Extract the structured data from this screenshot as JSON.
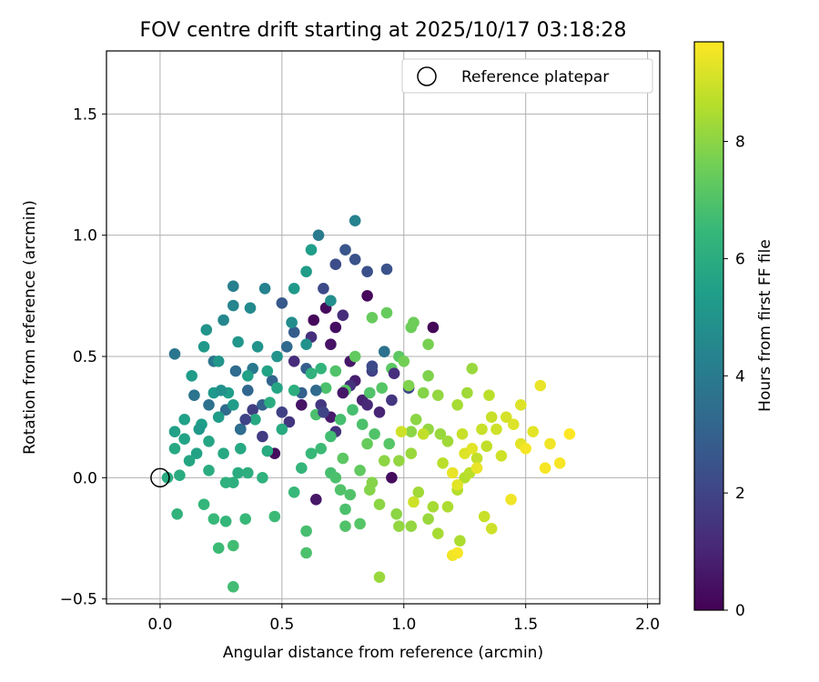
{
  "chart_data": {
    "type": "scatter",
    "title": "FOV centre drift starting at 2025/10/17 03:18:28",
    "xlabel": "Angular distance from reference (arcmin)",
    "ylabel": "Rotation from reference (arcmin)",
    "xlim": [
      -0.22,
      2.05
    ],
    "ylim": [
      -0.52,
      1.76
    ],
    "xticks": [
      0.0,
      0.5,
      1.0,
      1.5,
      2.0
    ],
    "xtick_labels": [
      "0.0",
      "0.5",
      "1.0",
      "1.5",
      "2.0"
    ],
    "yticks": [
      -0.5,
      0.0,
      0.5,
      1.0,
      1.5
    ],
    "ytick_labels": [
      "−0.5",
      "0.0",
      "0.5",
      "1.0",
      "1.5"
    ],
    "grid": true,
    "legend": {
      "position": "top-right",
      "entries": [
        "Reference platepar"
      ]
    },
    "reference_point": {
      "x": 0.0,
      "y": 0.0,
      "marker": "open-circle"
    },
    "colorbar": {
      "label": "Hours from first FF file",
      "range": [
        0,
        9.7
      ],
      "ticks": [
        0,
        2,
        4,
        6,
        8
      ],
      "tick_labels": [
        "0",
        "2",
        "4",
        "6",
        "8"
      ],
      "colormap": [
        "#440154",
        "#482878",
        "#3e4989",
        "#31688e",
        "#26828e",
        "#1f9e89",
        "#35b779",
        "#6ece58",
        "#b5de2b",
        "#fde725"
      ]
    },
    "points": [
      [
        0.63,
        0.65,
        0.2
      ],
      [
        0.68,
        0.7,
        0.3
      ],
      [
        0.72,
        0.62,
        0.4
      ],
      [
        0.85,
        0.75,
        0.2
      ],
      [
        1.12,
        0.62,
        0.1
      ],
      [
        0.7,
        0.55,
        0.5
      ],
      [
        0.78,
        0.48,
        0.6
      ],
      [
        0.8,
        0.4,
        0.8
      ],
      [
        0.58,
        0.3,
        0.5
      ],
      [
        0.47,
        0.1,
        0.3
      ],
      [
        0.95,
        0.0,
        0.3
      ],
      [
        0.64,
        -0.09,
        0.6
      ],
      [
        0.7,
        0.25,
        0.7
      ],
      [
        0.83,
        0.32,
        0.9
      ],
      [
        0.9,
        0.27,
        1.0
      ],
      [
        0.75,
        0.67,
        1.2
      ],
      [
        0.62,
        0.58,
        1.3
      ],
      [
        0.55,
        0.48,
        1.2
      ],
      [
        0.78,
        0.38,
        1.4
      ],
      [
        0.95,
        0.32,
        1.5
      ],
      [
        0.66,
        0.3,
        1.6
      ],
      [
        0.72,
        0.19,
        1.4
      ],
      [
        0.53,
        0.23,
        1.5
      ],
      [
        0.42,
        0.17,
        1.7
      ],
      [
        0.33,
        0.2,
        1.6
      ],
      [
        0.38,
        0.28,
        1.8
      ],
      [
        0.87,
        0.44,
        1.9
      ],
      [
        1.02,
        0.37,
        2.0
      ],
      [
        0.67,
        0.78,
        2.2
      ],
      [
        0.72,
        0.88,
        2.3
      ],
      [
        0.85,
        0.85,
        2.4
      ],
      [
        0.93,
        0.86,
        2.5
      ],
      [
        0.8,
        0.9,
        2.5
      ],
      [
        0.76,
        0.94,
        2.6
      ],
      [
        0.5,
        0.72,
        2.7
      ],
      [
        0.55,
        0.6,
        2.8
      ],
      [
        0.6,
        0.45,
        2.9
      ],
      [
        0.58,
        0.35,
        3.0
      ],
      [
        0.42,
        0.3,
        3.0
      ],
      [
        0.46,
        0.4,
        3.1
      ],
      [
        0.36,
        0.36,
        3.2
      ],
      [
        0.52,
        0.54,
        3.3
      ],
      [
        0.31,
        0.44,
        3.4
      ],
      [
        0.27,
        0.28,
        3.4
      ],
      [
        0.33,
        0.2,
        3.5
      ],
      [
        0.2,
        0.3,
        3.6
      ],
      [
        0.14,
        0.34,
        3.7
      ],
      [
        0.22,
        0.48,
        3.8
      ],
      [
        0.06,
        0.51,
        3.8
      ],
      [
        0.38,
        0.45,
        3.9
      ],
      [
        0.65,
        1.0,
        4.0
      ],
      [
        0.8,
        1.06,
        4.3
      ],
      [
        0.3,
        0.79,
        4.2
      ],
      [
        0.43,
        0.78,
        4.3
      ],
      [
        0.26,
        0.65,
        4.5
      ],
      [
        0.3,
        0.71,
        4.4
      ],
      [
        0.37,
        0.7,
        4.6
      ],
      [
        0.54,
        0.64,
        4.7
      ],
      [
        0.7,
        0.73,
        4.8
      ],
      [
        0.6,
        0.55,
        4.9
      ],
      [
        0.48,
        0.5,
        5.0
      ],
      [
        0.4,
        0.54,
        5.0
      ],
      [
        0.32,
        0.56,
        5.1
      ],
      [
        0.24,
        0.48,
        5.1
      ],
      [
        0.18,
        0.54,
        5.2
      ],
      [
        0.13,
        0.42,
        5.3
      ],
      [
        0.22,
        0.35,
        5.2
      ],
      [
        0.3,
        0.3,
        5.3
      ],
      [
        0.17,
        0.22,
        5.4
      ],
      [
        0.1,
        0.24,
        5.5
      ],
      [
        0.06,
        0.19,
        5.5
      ],
      [
        0.1,
        0.16,
        5.6
      ],
      [
        0.15,
        0.1,
        5.6
      ],
      [
        0.2,
        0.15,
        5.7
      ],
      [
        0.26,
        0.1,
        5.8
      ],
      [
        0.33,
        0.12,
        5.8
      ],
      [
        0.44,
        0.11,
        5.9
      ],
      [
        0.06,
        0.12,
        5.8
      ],
      [
        0.03,
        0.0,
        5.9
      ],
      [
        0.08,
        0.01,
        6.0
      ],
      [
        0.2,
        0.03,
        6.0
      ],
      [
        0.3,
        -0.02,
        6.1
      ],
      [
        0.32,
        0.02,
        6.0
      ],
      [
        0.36,
        0.02,
        6.1
      ],
      [
        0.27,
        -0.02,
        6.2
      ],
      [
        0.42,
        0.0,
        6.2
      ],
      [
        0.07,
        -0.15,
        6.3
      ],
      [
        0.18,
        -0.11,
        6.4
      ],
      [
        0.22,
        -0.17,
        6.5
      ],
      [
        0.27,
        -0.18,
        6.4
      ],
      [
        0.35,
        -0.17,
        6.5
      ],
      [
        0.47,
        -0.16,
        6.6
      ],
      [
        0.24,
        -0.29,
        6.6
      ],
      [
        0.3,
        -0.28,
        6.7
      ],
      [
        0.3,
        -0.45,
        6.7
      ],
      [
        0.55,
        -0.06,
        6.5
      ],
      [
        0.6,
        -0.22,
        6.8
      ],
      [
        0.6,
        -0.31,
        6.9
      ],
      [
        0.7,
        0.02,
        6.8
      ],
      [
        0.72,
        0.0,
        6.9
      ],
      [
        0.74,
        -0.05,
        7.0
      ],
      [
        0.76,
        -0.13,
        6.9
      ],
      [
        0.78,
        -0.07,
        7.0
      ],
      [
        0.82,
        -0.19,
        7.1
      ],
      [
        0.76,
        -0.2,
        7.0
      ],
      [
        0.58,
        0.04,
        6.4
      ],
      [
        0.62,
        0.1,
        6.5
      ],
      [
        0.66,
        0.12,
        6.6
      ],
      [
        0.7,
        0.17,
        6.7
      ],
      [
        0.74,
        0.24,
        6.8
      ],
      [
        0.79,
        0.28,
        6.8
      ],
      [
        0.83,
        0.22,
        6.9
      ],
      [
        0.88,
        0.18,
        7.0
      ],
      [
        0.94,
        0.14,
        7.1
      ],
      [
        0.86,
        0.35,
        7.0
      ],
      [
        0.91,
        0.37,
        7.1
      ],
      [
        0.95,
        0.45,
        7.2
      ],
      [
        0.98,
        0.5,
        7.2
      ],
      [
        0.92,
        0.52,
        7.3
      ],
      [
        0.87,
        0.66,
        7.4
      ],
      [
        0.93,
        0.68,
        7.4
      ],
      [
        1.03,
        0.62,
        7.5
      ],
      [
        1.04,
        0.64,
        7.5
      ],
      [
        1.0,
        0.48,
        7.6
      ],
      [
        1.1,
        0.55,
        7.7
      ],
      [
        1.02,
        0.38,
        7.8
      ],
      [
        1.1,
        0.42,
        7.8
      ],
      [
        1.08,
        0.35,
        7.9
      ],
      [
        1.05,
        0.24,
        8.0
      ],
      [
        1.03,
        0.19,
        8.0
      ],
      [
        1.1,
        0.2,
        8.1
      ],
      [
        1.15,
        0.18,
        8.2
      ],
      [
        1.18,
        0.15,
        8.3
      ],
      [
        1.03,
        0.1,
        8.2
      ],
      [
        0.98,
        0.07,
        8.1
      ],
      [
        0.92,
        0.07,
        8.0
      ],
      [
        0.87,
        -0.02,
        7.9
      ],
      [
        0.86,
        -0.05,
        7.9
      ],
      [
        0.9,
        -0.11,
        8.0
      ],
      [
        0.97,
        -0.15,
        8.0
      ],
      [
        0.98,
        -0.2,
        8.1
      ],
      [
        1.03,
        -0.2,
        8.1
      ],
      [
        1.1,
        -0.17,
        8.2
      ],
      [
        1.06,
        -0.06,
        8.3
      ],
      [
        1.12,
        -0.12,
        8.4
      ],
      [
        1.18,
        -0.12,
        8.5
      ],
      [
        1.22,
        -0.05,
        8.6
      ],
      [
        1.14,
        -0.23,
        8.4
      ],
      [
        1.23,
        -0.26,
        8.5
      ],
      [
        0.9,
        -0.41,
        8.2
      ],
      [
        1.25,
        0.0,
        8.6
      ],
      [
        1.27,
        0.02,
        8.7
      ],
      [
        1.3,
        0.08,
        8.8
      ],
      [
        1.34,
        0.13,
        8.8
      ],
      [
        1.32,
        0.2,
        8.9
      ],
      [
        1.38,
        0.2,
        9.0
      ],
      [
        1.33,
        -0.16,
        8.9
      ],
      [
        1.36,
        -0.21,
        9.0
      ],
      [
        1.4,
        0.09,
        9.0
      ],
      [
        1.36,
        0.25,
        8.9
      ],
      [
        1.42,
        0.25,
        9.1
      ],
      [
        1.45,
        0.22,
        9.2
      ],
      [
        1.48,
        0.3,
        9.2
      ],
      [
        1.48,
        0.14,
        9.3
      ],
      [
        1.53,
        0.19,
        9.3
      ],
      [
        1.56,
        0.38,
        9.4
      ],
      [
        1.6,
        0.14,
        9.5
      ],
      [
        1.64,
        0.06,
        9.6
      ],
      [
        1.68,
        0.18,
        9.7
      ],
      [
        1.58,
        0.04,
        9.6
      ],
      [
        1.2,
        0.02,
        9.4
      ],
      [
        1.22,
        -0.03,
        9.3
      ],
      [
        1.25,
        0.1,
        9.2
      ],
      [
        1.28,
        0.12,
        9.3
      ],
      [
        1.3,
        0.04,
        9.4
      ],
      [
        1.2,
        -0.32,
        9.5
      ],
      [
        1.22,
        -0.31,
        9.6
      ],
      [
        1.44,
        -0.09,
        9.5
      ],
      [
        1.5,
        0.12,
        9.6
      ],
      [
        1.35,
        0.34,
        8.7
      ],
      [
        1.28,
        0.45,
        8.2
      ],
      [
        1.26,
        0.35,
        8.3
      ],
      [
        1.14,
        0.34,
        8.1
      ],
      [
        1.22,
        0.3,
        8.4
      ],
      [
        0.99,
        0.19,
        9.0
      ],
      [
        1.08,
        0.18,
        8.8
      ],
      [
        1.04,
        -0.1,
        9.0
      ],
      [
        1.16,
        0.06,
        8.7
      ],
      [
        1.24,
        0.18,
        8.9
      ],
      [
        0.75,
        0.08,
        7.2
      ],
      [
        0.82,
        0.03,
        7.3
      ],
      [
        0.85,
        0.14,
        7.4
      ],
      [
        0.8,
        0.5,
        7.3
      ],
      [
        0.76,
        0.36,
        7.1
      ],
      [
        0.72,
        0.44,
        7.0
      ],
      [
        0.68,
        0.37,
        6.9
      ],
      [
        0.64,
        0.26,
        6.9
      ],
      [
        0.66,
        0.45,
        6.3
      ],
      [
        0.62,
        0.43,
        6.2
      ],
      [
        0.55,
        0.36,
        6.1
      ],
      [
        0.45,
        0.31,
        6.0
      ],
      [
        0.5,
        0.2,
        5.9
      ],
      [
        0.39,
        0.24,
        5.8
      ],
      [
        0.48,
        0.37,
        5.7
      ],
      [
        0.44,
        0.44,
        5.6
      ],
      [
        0.36,
        0.42,
        5.5
      ],
      [
        0.28,
        0.35,
        5.4
      ],
      [
        0.24,
        0.25,
        5.3
      ],
      [
        0.16,
        0.2,
        5.2
      ],
      [
        0.12,
        0.07,
        5.7
      ],
      [
        0.25,
        0.36,
        4.9
      ],
      [
        0.19,
        0.61,
        5.0
      ],
      [
        0.6,
        0.85,
        5.3
      ],
      [
        0.62,
        0.94,
        5.4
      ],
      [
        0.55,
        0.78,
        5.2
      ],
      [
        0.92,
        0.52,
        3.6
      ],
      [
        0.87,
        0.46,
        2.2
      ],
      [
        0.64,
        0.36,
        3.3
      ],
      [
        0.67,
        0.27,
        2.0
      ],
      [
        0.5,
        0.27,
        1.9
      ],
      [
        0.35,
        0.24,
        2.0
      ],
      [
        0.96,
        0.43,
        1.3
      ],
      [
        0.85,
        0.3,
        1.1
      ],
      [
        0.75,
        0.35,
        0.6
      ]
    ]
  }
}
